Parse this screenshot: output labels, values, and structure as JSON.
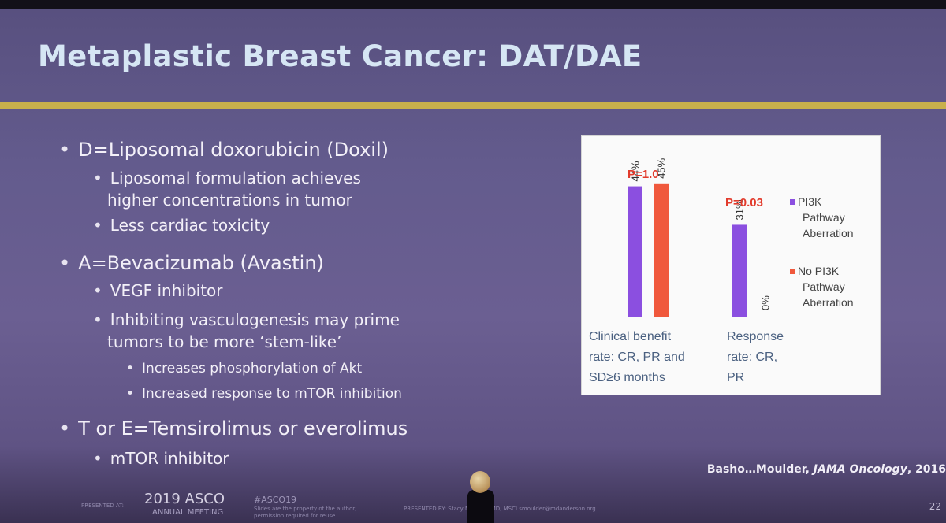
{
  "slide": {
    "title": "Metaplastic Breast Cancer: DAT/DAE",
    "bullets": [
      {
        "level": 1,
        "text": "D=Liposomal doxorubicin (Doxil)"
      },
      {
        "level": 2,
        "text": "Liposomal formulation achieves"
      },
      {
        "level": 2,
        "text": "higher concentrations in tumor",
        "continuation": true
      },
      {
        "level": 2,
        "text": "Less cardiac toxicity"
      },
      {
        "level": 1,
        "text": "A=Bevacizumab (Avastin)"
      },
      {
        "level": 2,
        "text": "VEGF inhibitor"
      },
      {
        "level": 2,
        "text": "Inhibiting vasculogenesis may prime"
      },
      {
        "level": 2,
        "text": "tumors to be more ‘stem-like’",
        "continuation": true
      },
      {
        "level": 3,
        "text": "Increases phosphorylation of Akt"
      },
      {
        "level": 3,
        "text": "Increased response to mTOR inhibition"
      },
      {
        "level": 1,
        "text": "T or E=Temsirolimus or everolimus"
      },
      {
        "level": 2,
        "text": "mTOR inhibitor"
      }
    ],
    "citation_authors": "Basho…Moulder, ",
    "citation_journal": "JAMA Oncology",
    "citation_year": ", 2016"
  },
  "footer": {
    "presented_at": "PRESENTED AT:",
    "year": "2019 ASCO",
    "meeting": "ANNUAL MEETING",
    "hashtag": "#ASCO19",
    "notice_line1": "Slides are the property of the author,",
    "notice_line2": "permission required for reuse.",
    "presented_by": "PRESENTED BY:  Stacy Moulder, MD, MSCI  smoulder@mdanderson.org",
    "page": "22"
  },
  "chart_data": {
    "type": "bar",
    "categories": [
      "Clinical benefit rate: CR, PR and SD≥6 months",
      "Response rate: CR, PR"
    ],
    "category_label_lines": [
      [
        "Clinical benefit",
        "rate: CR, PR and",
        "SD≥6 months"
      ],
      [
        "Response",
        "rate: CR,",
        "PR"
      ]
    ],
    "series": [
      {
        "name": "PI3K Pathway Aberration",
        "name_lines": [
          "PI3K",
          "Pathway",
          "Aberration"
        ],
        "values": [
          44,
          31
        ],
        "labels": [
          "44%",
          "31%"
        ],
        "color": "#8b4fe0"
      },
      {
        "name": "No PI3K Pathway Aberration",
        "name_lines": [
          "No PI3K",
          "Pathway",
          "Aberration"
        ],
        "values": [
          45,
          0
        ],
        "labels": [
          "45%",
          "0%"
        ],
        "color": "#f0583c"
      }
    ],
    "p_values": [
      "P=1.0",
      "P=0.03"
    ],
    "p_color": "#e23b2c",
    "ylim": [
      0,
      50
    ],
    "legend": "right",
    "grid": false
  }
}
